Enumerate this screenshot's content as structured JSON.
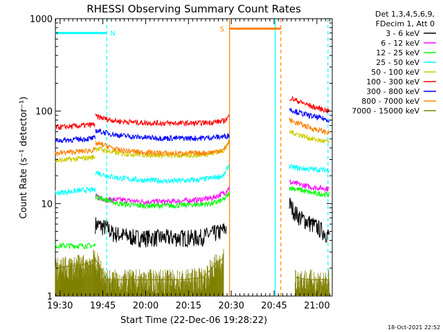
{
  "chart_data": {
    "type": "line",
    "title": "RHESSI Observing Summary Count Rates",
    "xlabel": "Start Time (22-Dec-06 19:28:22)",
    "ylabel": "Count Rate (s⁻¹ detector⁻¹)",
    "yscale": "log",
    "ylim": [
      1,
      1000
    ],
    "xlim_minutes": [
      0,
      97
    ],
    "x_tick_labels": [
      "19:30",
      "19:45",
      "20:00",
      "20:15",
      "20:30",
      "20:45",
      "21:00"
    ],
    "y_tick_labels": [
      "1",
      "10",
      "100",
      "1000"
    ],
    "legend_header": [
      "Det 1,3,4,5,6,9,",
      "FDecim 1, Att 0"
    ],
    "timestamp": "18-Oct-2021 22:52",
    "annotations": [
      {
        "label": "N",
        "color": "#00ffff",
        "start": 0,
        "end": 18,
        "y": 700
      },
      {
        "label": "S",
        "color": "#ff8000",
        "start": 61,
        "end": 79,
        "y": 780
      }
    ],
    "vlines": [
      {
        "t": 18,
        "color": "#00ffff",
        "style": "dashed"
      },
      {
        "t": 61,
        "color": "#ff8000",
        "style": "solid"
      },
      {
        "t": 77,
        "color": "#00ffff",
        "style": "solid"
      },
      {
        "t": 79,
        "color": "#ff8000",
        "style": "dashed"
      },
      {
        "t": 95.5,
        "color": "#00ffff",
        "style": "dashed"
      }
    ],
    "series": [
      {
        "name": "3 - 6 keV",
        "color": "#000000",
        "segments": [
          {
            "t": [
              14,
              18,
              20,
              28,
              40,
              50,
              58,
              60
            ],
            "y": [
              6,
              5.5,
              4.8,
              4.3,
              4.3,
              4.3,
              5,
              5.5
            ]
          },
          {
            "t": [
              82,
              84,
              86,
              88,
              90,
              92,
              94,
              96
            ],
            "y": [
              10,
              8,
              7,
              6.5,
              6,
              5.5,
              5,
              4.5
            ]
          }
        ]
      },
      {
        "name": "6 - 12 keV",
        "color": "#ff00ff",
        "segments": [
          {
            "t": [
              14,
              18,
              22,
              30,
              40,
              50,
              55,
              59,
              61
            ],
            "y": [
              12,
              11,
              11,
              10.5,
              10.5,
              11,
              11.5,
              13,
              15
            ]
          },
          {
            "t": [
              82,
              86,
              90,
              96
            ],
            "y": [
              17,
              16,
              15,
              14.5
            ]
          }
        ]
      },
      {
        "name": "12 - 25 keV",
        "color": "#00ff00",
        "segments": [
          {
            "t": [
              0,
              14
            ],
            "y": [
              3.5,
              3.5
            ]
          },
          {
            "t": [
              14,
              18,
              22,
              30,
              40,
              50,
              55,
              59,
              61
            ],
            "y": [
              12,
              11,
              10,
              9.5,
              9.5,
              9.8,
              10,
              11,
              13
            ]
          },
          {
            "t": [
              82,
              86,
              90,
              96
            ],
            "y": [
              15,
              14,
              13,
              12.5
            ]
          }
        ]
      },
      {
        "name": "25 - 50 keV",
        "color": "#00ffff",
        "segments": [
          {
            "t": [
              0,
              5,
              10,
              14
            ],
            "y": [
              13,
              13.5,
              14,
              14
            ]
          },
          {
            "t": [
              14,
              18,
              22,
              30,
              40,
              50,
              55,
              59,
              61
            ],
            "y": [
              22,
              20,
              19,
              18,
              17.5,
              18,
              19,
              20,
              27
            ]
          },
          {
            "t": [
              82,
              86,
              90,
              96
            ],
            "y": [
              25,
              24,
              23.5,
              23
            ]
          }
        ]
      },
      {
        "name": "50 - 100 keV",
        "color": "#cccc00",
        "segments": [
          {
            "t": [
              0,
              5,
              10,
              14
            ],
            "y": [
              29,
              30,
              31,
              32
            ]
          },
          {
            "t": [
              14,
              18,
              22,
              30,
              40,
              50,
              55,
              59,
              61
            ],
            "y": [
              40,
              37,
              35,
              34,
              33,
              33.5,
              35,
              38,
              48
            ]
          },
          {
            "t": [
              82,
              86,
              90,
              96
            ],
            "y": [
              60,
              55,
              50,
              46
            ]
          }
        ]
      },
      {
        "name": "100 - 300 keV",
        "color": "#ff0000",
        "segments": [
          {
            "t": [
              0,
              5,
              10,
              14
            ],
            "y": [
              67,
              68,
              70,
              72
            ]
          },
          {
            "t": [
              14,
              18,
              22,
              30,
              40,
              50,
              55,
              59,
              61
            ],
            "y": [
              88,
              82,
              78,
              75,
              74,
              74,
              76,
              78,
              88
            ]
          },
          {
            "t": [
              82,
              86,
              90,
              96
            ],
            "y": [
              140,
              125,
              112,
              100
            ]
          }
        ]
      },
      {
        "name": "300 - 800 keV",
        "color": "#0000ff",
        "segments": [
          {
            "t": [
              0,
              5,
              10,
              14
            ],
            "y": [
              48,
              49,
              50,
              51
            ]
          },
          {
            "t": [
              14,
              18,
              22,
              30,
              40,
              50,
              55,
              59,
              61
            ],
            "y": [
              62,
              58,
              55,
              52,
              51,
              51,
              52,
              53,
              55
            ]
          },
          {
            "t": [
              82,
              86,
              90,
              96
            ],
            "y": [
              105,
              95,
              88,
              80
            ]
          }
        ]
      },
      {
        "name": "800 - 7000 keV",
        "color": "#ff8000",
        "segments": [
          {
            "t": [
              0,
              5,
              10,
              14
            ],
            "y": [
              35,
              36,
              37,
              38
            ]
          },
          {
            "t": [
              14,
              18,
              22,
              30,
              40,
              50,
              55,
              59,
              61
            ],
            "y": [
              45,
              42,
              38,
              36,
              35,
              35,
              36,
              38,
              47
            ]
          },
          {
            "t": [
              82,
              86,
              90,
              96
            ],
            "y": [
              80,
              72,
              65,
              58
            ]
          }
        ]
      },
      {
        "name": "7000 - 15000 keV",
        "color": "#808000",
        "segments": [
          {
            "t": [
              0,
              5,
              10,
              14,
              18,
              25,
              35,
              45,
              52,
              56,
              59
            ],
            "y": [
              2.0,
              2.1,
              2.2,
              2.5,
              1.5,
              1.5,
              1.5,
              1.5,
              1.6,
              2.2,
              2.6
            ]
          },
          {
            "t": [
              84,
              88,
              92,
              96
            ],
            "y": [
              1.6,
              1.5,
              1.5,
              1.5
            ]
          }
        ]
      }
    ]
  }
}
